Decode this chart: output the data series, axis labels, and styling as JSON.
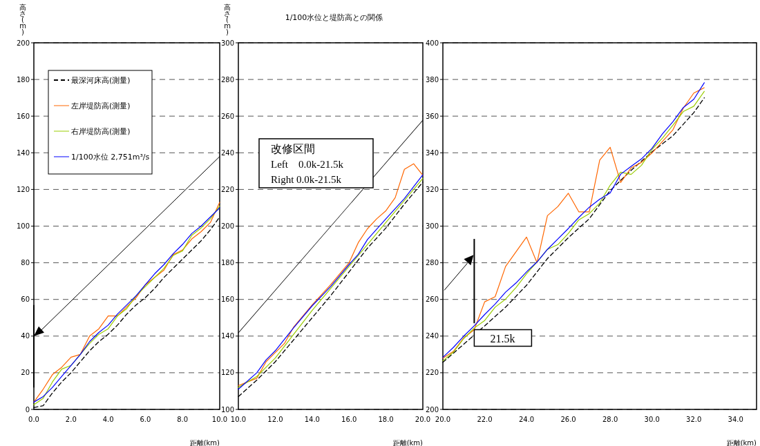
{
  "chart_data": [
    {
      "type": "line",
      "ylabel": "高さ(m)",
      "xlabel": "距離(km)",
      "xlim": [
        0,
        10
      ],
      "ylim": [
        0,
        200
      ],
      "xticks": [
        {
          "value": 0,
          "label": "0.0"
        },
        {
          "value": 2,
          "label": "2.0"
        },
        {
          "value": 4,
          "label": "4.0"
        },
        {
          "value": 6,
          "label": "6.0"
        },
        {
          "value": 8,
          "label": "8.0"
        },
        {
          "value": 10,
          "label": "10.0"
        }
      ],
      "yticks": [
        0,
        20,
        40,
        60,
        80,
        100,
        120,
        140,
        160,
        180,
        200
      ],
      "grid": "y",
      "legend": "top left",
      "series": [
        {
          "name": "最深河床高(測量)",
          "color": "#000000",
          "line_style": "dashed",
          "x": [
            0,
            0.5,
            1,
            1.5,
            2,
            2.5,
            3,
            3.5,
            4,
            4.5,
            5,
            5.5,
            6,
            6.5,
            7,
            7.5,
            8,
            8.5,
            9,
            9.5,
            10
          ],
          "values": [
            1,
            2,
            9,
            15,
            20,
            26,
            32,
            37,
            41,
            46,
            52,
            57,
            61,
            66,
            72,
            77,
            82,
            87,
            92,
            98,
            105
          ]
        },
        {
          "name": "左岸堤防高(測量)",
          "color": "#ff6600",
          "x": [
            0,
            0.5,
            1,
            1.5,
            2,
            2.5,
            3,
            3.5,
            4,
            4.5,
            5,
            5.5,
            6,
            6.5,
            7,
            7.5,
            8,
            8.5,
            9,
            9.5,
            10
          ],
          "values": [
            4,
            11,
            19,
            23,
            28.5,
            30,
            40,
            44,
            51,
            51,
            56,
            61,
            68,
            72,
            76,
            84.5,
            87,
            93,
            97,
            102,
            113
          ]
        },
        {
          "name": "右岸堤防高(測量)",
          "color": "#99cc00",
          "x": [
            0,
            0.5,
            1,
            1.5,
            2,
            2.5,
            3,
            3.5,
            4,
            4.5,
            5,
            5.5,
            6,
            6.5,
            7,
            7.5,
            8,
            8.5,
            9,
            9.5,
            10
          ],
          "values": [
            2.5,
            6,
            15,
            22,
            24,
            30,
            36,
            41,
            44,
            51,
            55,
            62,
            67,
            72,
            77,
            84,
            86.5,
            95,
            99,
            104,
            111
          ]
        },
        {
          "name": "1/100水位 2,751m³/s",
          "color": "#0000ff",
          "x": [
            0,
            0.5,
            1,
            1.5,
            2,
            2.5,
            3,
            3.5,
            4,
            4.5,
            5,
            5.5,
            6,
            6.5,
            7,
            7.5,
            8,
            8.5,
            9,
            9.5,
            10
          ],
          "values": [
            4,
            7,
            12,
            18,
            24,
            30,
            37,
            42,
            46,
            52,
            57,
            62,
            68,
            74,
            79,
            85,
            90,
            96,
            100,
            105,
            110
          ]
        }
      ]
    },
    {
      "type": "line",
      "title": "1/100水位と堤防高との関係",
      "ylabel": "高さ(m)",
      "xlabel": "距離(km)",
      "xlim": [
        10,
        20
      ],
      "ylim": [
        100,
        300
      ],
      "xticks": [
        {
          "value": 10,
          "label": "10.0"
        },
        {
          "value": 12,
          "label": "12.0"
        },
        {
          "value": 14,
          "label": "14.0"
        },
        {
          "value": 16,
          "label": "16.0"
        },
        {
          "value": 18,
          "label": "18.0"
        },
        {
          "value": 20,
          "label": "20.0"
        }
      ],
      "yticks": [
        100,
        120,
        140,
        160,
        180,
        200,
        220,
        240,
        260,
        280,
        300
      ],
      "grid": "y",
      "annotations": [
        "改修区間",
        "Left　0.0k-21.5k",
        "Right 0.0k-21.5k"
      ],
      "series": [
        {
          "color": "#000000",
          "line_style": "dashed",
          "x": [
            10,
            11,
            12,
            13,
            14,
            15,
            16,
            17,
            18,
            19,
            20
          ],
          "values": [
            107,
            116,
            126,
            138,
            150,
            162,
            175,
            188,
            199,
            212,
            224
          ]
        },
        {
          "color": "#ff6600",
          "x": [
            10,
            10.5,
            11,
            11.5,
            12,
            12.5,
            13,
            14,
            15,
            16,
            16.5,
            17,
            17.5,
            18,
            18.5,
            19,
            19.5,
            20
          ],
          "values": [
            113,
            115,
            117,
            126,
            131,
            136,
            145,
            157,
            168,
            180,
            191,
            198.6,
            204,
            208.4,
            215.5,
            231,
            234,
            227.7
          ]
        },
        {
          "color": "#99cc00",
          "x": [
            10,
            11,
            12,
            13,
            14,
            15,
            16,
            17,
            18,
            19,
            20
          ],
          "values": [
            112,
            118,
            128,
            141,
            154,
            166,
            178,
            190,
            202,
            214,
            226
          ]
        },
        {
          "color": "#0000ff",
          "x": [
            10,
            11,
            11.5,
            12,
            13,
            14,
            15,
            16,
            16.5,
            17,
            18,
            19,
            20
          ],
          "values": [
            111,
            120,
            127,
            132,
            144.6,
            156.5,
            167,
            179,
            184.6,
            192.7,
            204,
            215,
            228
          ]
        }
      ]
    },
    {
      "type": "line",
      "xlabel": "距離(km)",
      "xlim": [
        20,
        35
      ],
      "ylim": [
        200,
        400
      ],
      "xticks": [
        {
          "value": 20,
          "label": "20.0"
        },
        {
          "value": 22,
          "label": "22.0"
        },
        {
          "value": 24,
          "label": "24.0"
        },
        {
          "value": 26,
          "label": "26.0"
        },
        {
          "value": 28,
          "label": "28.0"
        },
        {
          "value": 30,
          "label": "30.0"
        },
        {
          "value": 32,
          "label": "32.0"
        },
        {
          "value": 34,
          "label": "34.0"
        }
      ],
      "yticks": [
        200,
        220,
        240,
        260,
        280,
        300,
        320,
        340,
        360,
        380,
        400
      ],
      "grid": "y",
      "annotations": [
        "21.5k"
      ],
      "series": [
        {
          "color": "#000000",
          "line_style": "dashed",
          "x": [
            20,
            21,
            22,
            23,
            24,
            25,
            26,
            27,
            28,
            29,
            30,
            31,
            32,
            32.5
          ],
          "values": [
            225.7,
            235.6,
            245.6,
            255.8,
            267.7,
            282.3,
            293.7,
            304,
            319.4,
            330.4,
            340.5,
            349.3,
            361.9,
            370
          ]
        },
        {
          "color": "#ff6600",
          "x": [
            20,
            20.5,
            21,
            21.5,
            22,
            22.5,
            23,
            23.5,
            24,
            24.5,
            25,
            25.5,
            26,
            26.5,
            27,
            27.5,
            28,
            28.5,
            29,
            29.5,
            30,
            30.5,
            31,
            31.5,
            32,
            32.5
          ],
          "values": [
            228,
            231.6,
            239,
            243.5,
            258.7,
            261.5,
            278,
            286,
            294,
            280,
            305.7,
            310.7,
            317.9,
            307.8,
            307.8,
            336,
            343,
            323.8,
            331.7,
            334.8,
            339.9,
            346.2,
            352.5,
            364.4,
            372.6,
            375.5
          ]
        },
        {
          "color": "#99cc00",
          "x": [
            20,
            20.5,
            21,
            21.5,
            22,
            22.5,
            23,
            23.5,
            24,
            24.5,
            25,
            25.5,
            26,
            26.5,
            27,
            27.5,
            28,
            28.5,
            29,
            29.5,
            30,
            30.5,
            31,
            31.5,
            32,
            32.5
          ],
          "values": [
            226.5,
            231.2,
            238.7,
            244.4,
            248.5,
            255.8,
            260.2,
            266.5,
            274,
            280.4,
            287.3,
            289.9,
            296,
            303.4,
            306.8,
            312.6,
            322.3,
            329.4,
            328.2,
            333.2,
            341.8,
            348,
            355,
            362.5,
            365.4,
            373.5
          ]
        },
        {
          "color": "#0000ff",
          "x": [
            20,
            20.5,
            21,
            21.5,
            22,
            22.5,
            23,
            23.5,
            24,
            24.5,
            25,
            25.5,
            26,
            26.5,
            27,
            27.5,
            28,
            28.5,
            29,
            29.5,
            30,
            30.5,
            31,
            31.5,
            32,
            32.5
          ],
          "values": [
            228.4,
            233.8,
            240,
            245.6,
            251.8,
            257.5,
            264,
            269,
            275,
            280.4,
            287.3,
            293,
            298.7,
            304.7,
            310.3,
            314.7,
            318.1,
            328.3,
            332.6,
            336.7,
            342.4,
            350.3,
            356.9,
            364.7,
            369.2,
            378.2
          ]
        }
      ]
    }
  ]
}
